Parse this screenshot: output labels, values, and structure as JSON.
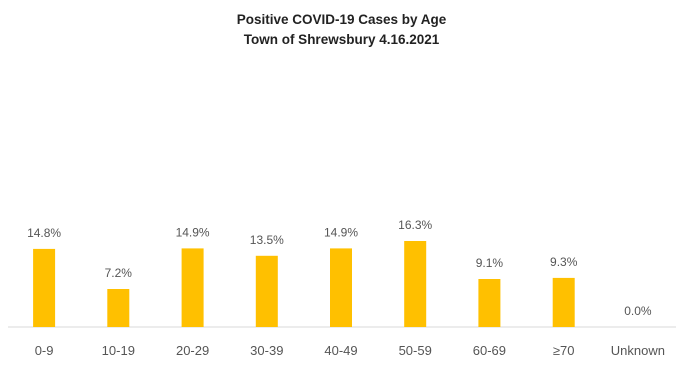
{
  "chart_data": {
    "type": "bar",
    "title": "Positive COVID-19 Cases by Age",
    "subtitle": "Town of Shrewsbury 4.16.2021",
    "categories": [
      "0-9",
      "10-19",
      "20-29",
      "30-39",
      "40-49",
      "50-59",
      "60-69",
      "≥70",
      "Unknown"
    ],
    "values": [
      14.8,
      7.2,
      14.9,
      13.5,
      14.9,
      16.3,
      9.1,
      9.3,
      0.0
    ],
    "data_labels": [
      "14.8%",
      "7.2%",
      "14.9%",
      "13.5%",
      "14.9%",
      "16.3%",
      "9.1%",
      "9.3%",
      "0.0%"
    ],
    "unit": "%",
    "xlabel": "",
    "ylabel": "",
    "ylim": [
      0,
      16.3
    ],
    "grid": false,
    "legend": "none",
    "bar_color": "#FFC000"
  }
}
